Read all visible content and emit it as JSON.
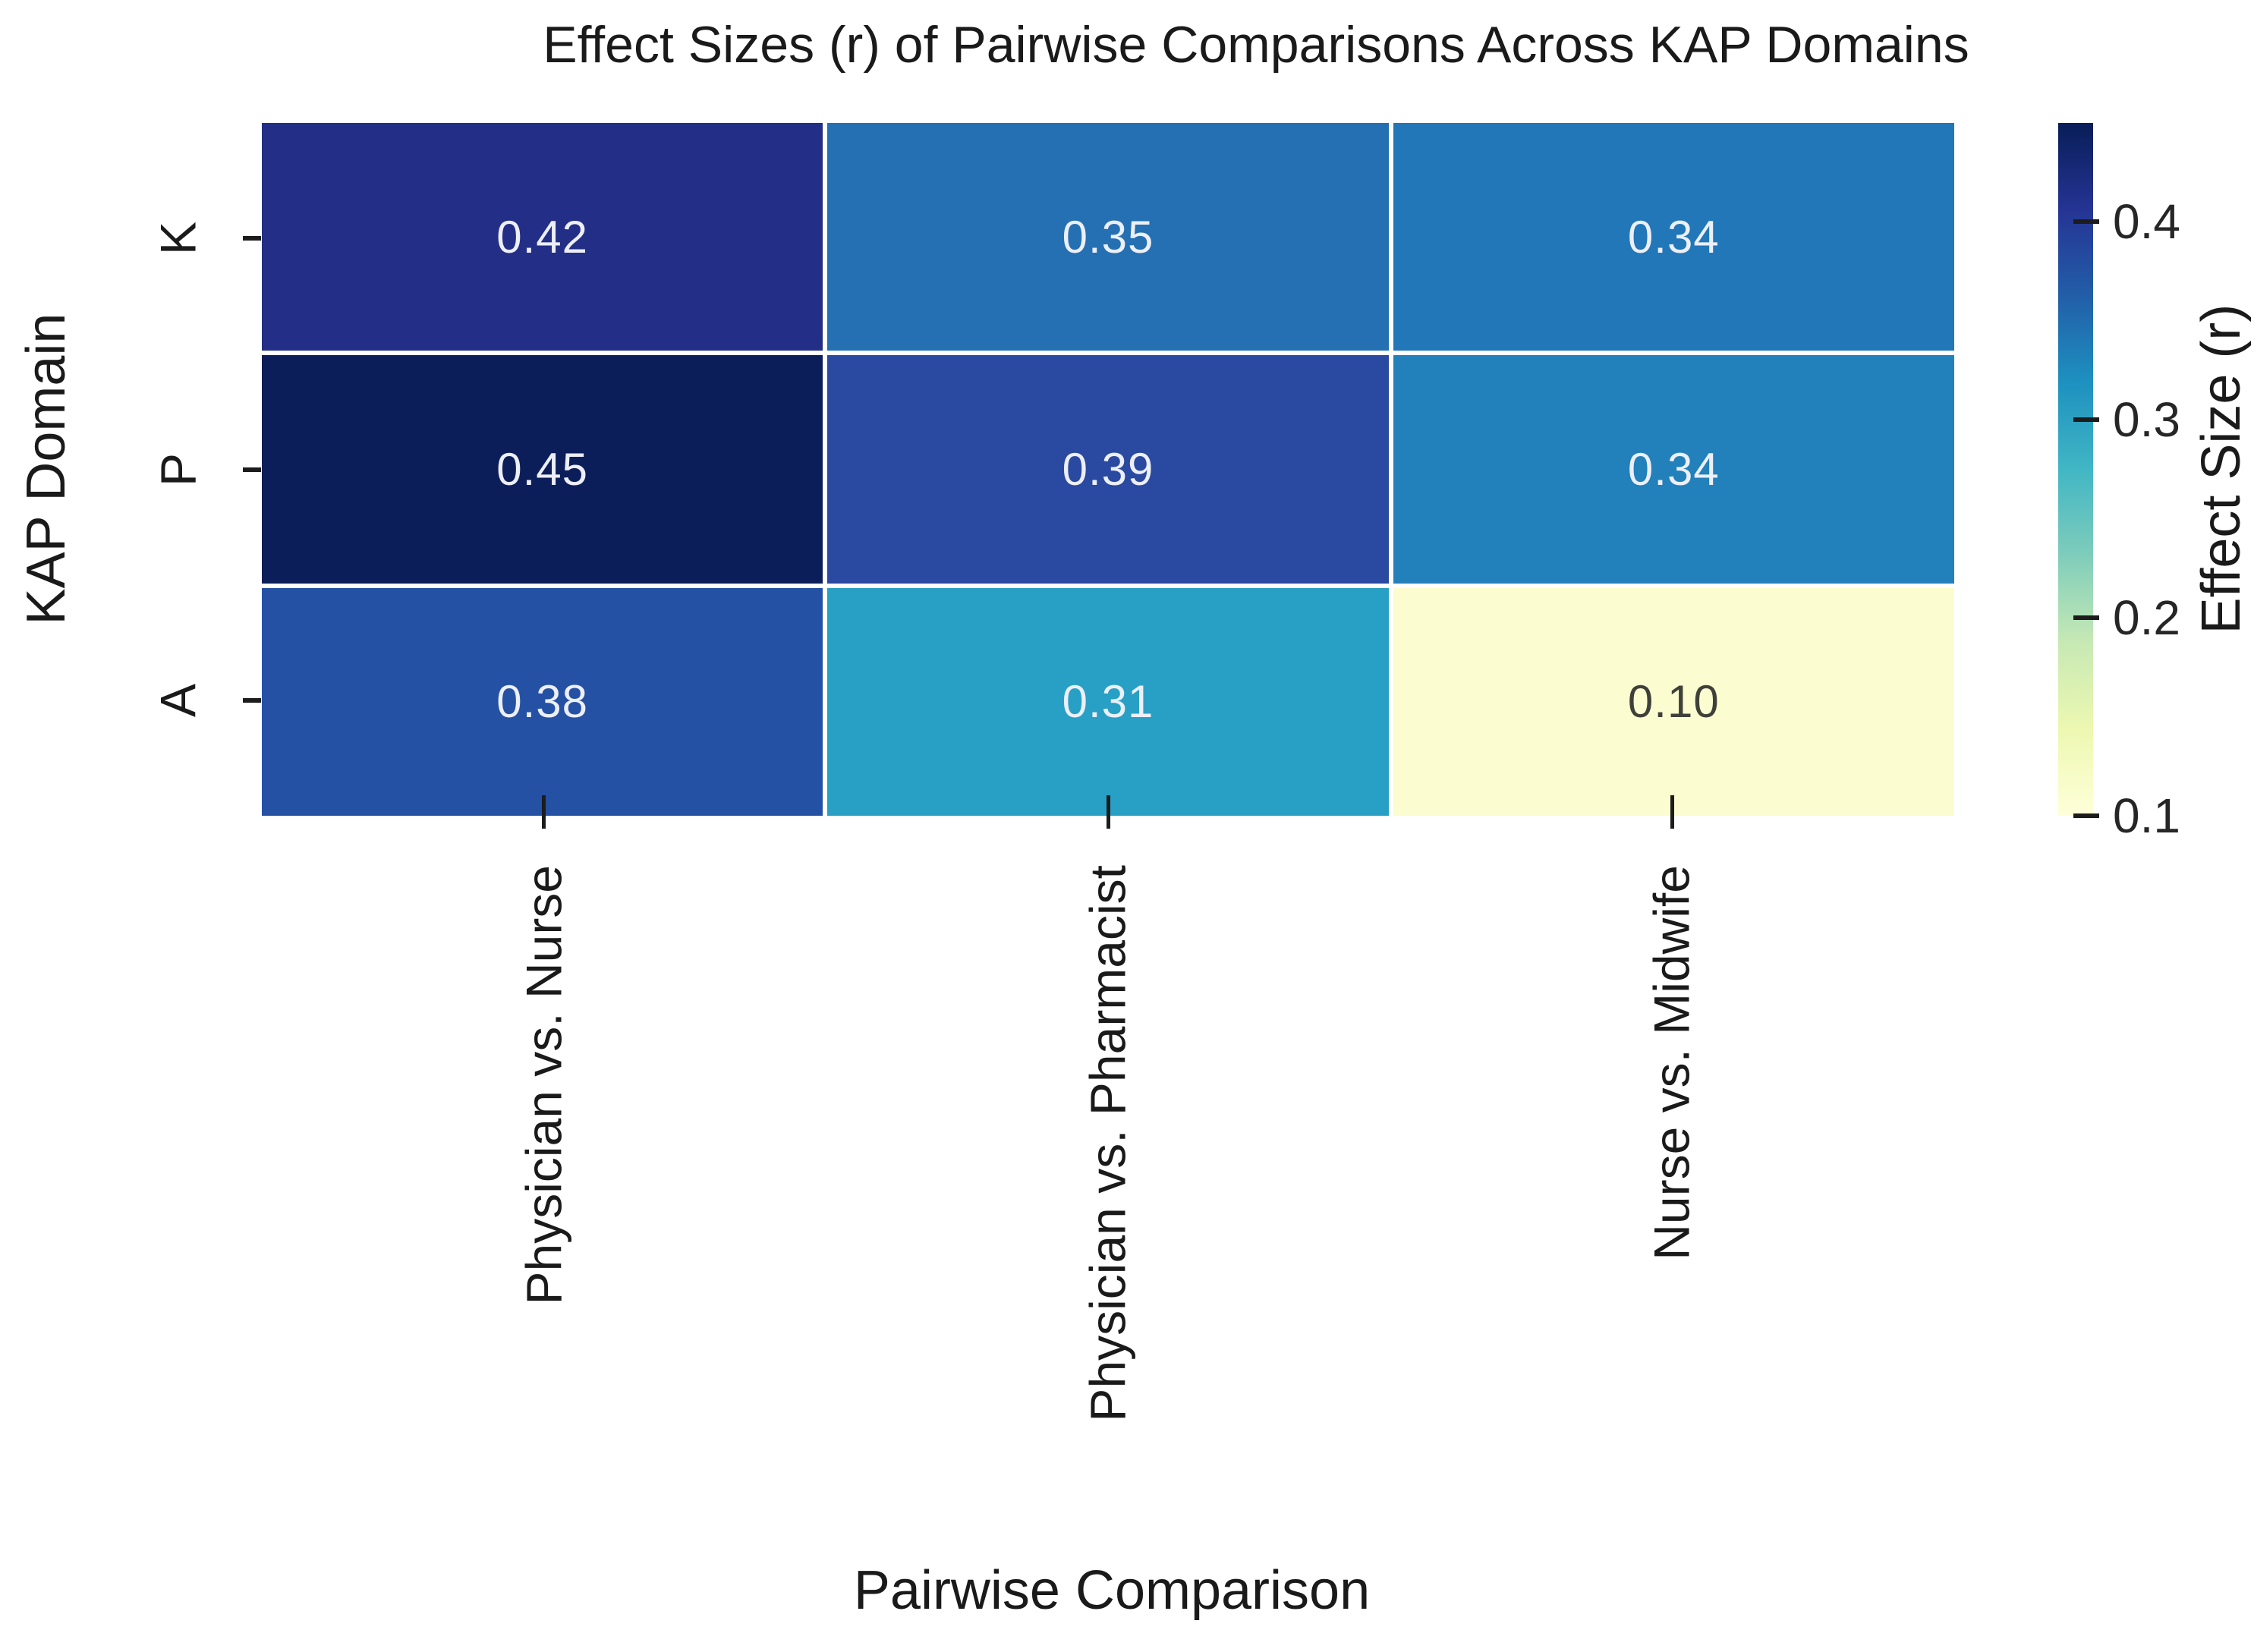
{
  "chart_data": {
    "type": "heatmap",
    "colormap": "YlGnBu",
    "title": "Effect Sizes (r) of Pairwise Comparisons Across KAP Domains",
    "xlabel": "Pairwise Comparison",
    "ylabel": "KAP Domain",
    "x_categories": [
      "Physician vs. Nurse",
      "Physician vs. Pharmacist",
      "Nurse vs. Midwife"
    ],
    "y_categories": [
      "K",
      "P",
      "A"
    ],
    "values": [
      [
        0.42,
        0.35,
        0.34
      ],
      [
        0.45,
        0.39,
        0.34
      ],
      [
        0.38,
        0.31,
        0.1
      ]
    ],
    "cell_labels": [
      [
        "0.42",
        "0.35",
        "0.34"
      ],
      [
        "0.45",
        "0.39",
        "0.34"
      ],
      [
        "0.38",
        "0.31",
        "0.10"
      ]
    ],
    "cell_colors": [
      [
        "#232e86",
        "#2470b3",
        "#2177b8"
      ],
      [
        "#0c1e5a",
        "#2a49a0",
        "#2280bb"
      ],
      [
        "#2551a4",
        "#28a0c5",
        "#fcfcd1"
      ]
    ],
    "cell_text_colors": [
      [
        "#edeff7",
        "#edeff7",
        "#edeff7"
      ],
      [
        "#edeff7",
        "#edeff7",
        "#edeff7"
      ],
      [
        "#edeff7",
        "#edeff7",
        "#40403a"
      ]
    ],
    "vmin": 0.1,
    "vmax": 0.45,
    "grid_line_color": "#ffffff",
    "axis_tick_color": "#1c1c1c",
    "text_color": "#1a1a1a",
    "legend_position": "right",
    "colorbar": {
      "label": "Effect Size (r)",
      "ticks": [
        {
          "value": 0.4,
          "label": "0.4"
        },
        {
          "value": 0.3,
          "label": "0.3"
        },
        {
          "value": 0.2,
          "label": "0.2"
        },
        {
          "value": 0.1,
          "label": "0.1"
        }
      ],
      "gradient_stops": [
        {
          "pos": 0,
          "color": "#081d58"
        },
        {
          "pos": 12.5,
          "color": "#253494"
        },
        {
          "pos": 25,
          "color": "#225ea8"
        },
        {
          "pos": 37.5,
          "color": "#1d91c0"
        },
        {
          "pos": 50,
          "color": "#41b6c4"
        },
        {
          "pos": 62.5,
          "color": "#7fcdbb"
        },
        {
          "pos": 75,
          "color": "#c7e9b4"
        },
        {
          "pos": 87.5,
          "color": "#edf8b1"
        },
        {
          "pos": 100,
          "color": "#ffffd9"
        }
      ]
    }
  }
}
